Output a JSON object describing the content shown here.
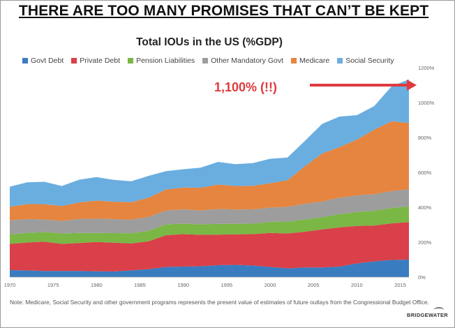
{
  "headline": "THERE ARE TOO MANY PROMISES THAT CAN’T BE KEPT",
  "note": "Note: Medicare, Social Security and other government programs represents the present value of estimates of future outlays from the Congressional Budget Office.",
  "brand": "BRIDGEWATER",
  "callout": {
    "text": "1,100%  (!!)",
    "color": "#e03a3e",
    "points_to_value": 1100
  },
  "chart_data": {
    "type": "area",
    "stacked": true,
    "title": "Total IOUs in the US (%GDP)",
    "xlabel": "",
    "ylabel": "",
    "xlim": [
      1970,
      2016
    ],
    "ylim": [
      0,
      1200
    ],
    "x_ticks": [
      "1970",
      "1975",
      "1980",
      "1985",
      "1990",
      "1995",
      "2000",
      "2005",
      "2010",
      "2015"
    ],
    "y_ticks": [
      "0%",
      "200%",
      "400%",
      "600%",
      "800%",
      "1000%",
      "1200%"
    ],
    "y_axis_position": "right",
    "legend_position": "top",
    "x": [
      1970,
      1972,
      1974,
      1976,
      1978,
      1980,
      1982,
      1984,
      1986,
      1988,
      1990,
      1992,
      1994,
      1996,
      1998,
      2000,
      2002,
      2004,
      2006,
      2008,
      2010,
      2012,
      2014,
      2016
    ],
    "series": [
      {
        "name": "Govt Debt",
        "color": "#3a7cc0",
        "values": [
          40,
          38,
          35,
          35,
          35,
          33,
          32,
          38,
          45,
          58,
          60,
          62,
          68,
          70,
          66,
          58,
          50,
          55,
          55,
          60,
          78,
          90,
          98,
          100
        ]
      },
      {
        "name": "Private Debt",
        "color": "#d94049",
        "values": [
          150,
          160,
          168,
          155,
          160,
          168,
          165,
          155,
          160,
          182,
          186,
          180,
          175,
          175,
          180,
          195,
          200,
          205,
          218,
          225,
          215,
          205,
          210,
          215
        ]
      },
      {
        "name": "Pension Liabilities",
        "color": "#7ab745",
        "values": [
          55,
          55,
          55,
          60,
          58,
          52,
          55,
          58,
          60,
          62,
          60,
          60,
          62,
          60,
          60,
          63,
          68,
          70,
          70,
          75,
          80,
          85,
          88,
          90
        ]
      },
      {
        "name": "Other Mandatory Govt",
        "color": "#9d9d9d",
        "values": [
          80,
          80,
          72,
          72,
          80,
          82,
          80,
          78,
          80,
          80,
          82,
          80,
          85,
          82,
          82,
          82,
          85,
          90,
          90,
          95,
          95,
          95,
          97,
          98
        ]
      },
      {
        "name": "Medicare",
        "color": "#e5853f",
        "values": [
          78,
          85,
          88,
          85,
          95,
          103,
          100,
          100,
          110,
          120,
          125,
          130,
          140,
          135,
          135,
          140,
          152,
          215,
          275,
          290,
          320,
          370,
          400,
          380
        ]
      },
      {
        "name": "Social Security",
        "color": "#6aaee0",
        "values": [
          115,
          125,
          128,
          115,
          130,
          135,
          125,
          120,
          125,
          105,
          105,
          115,
          130,
          125,
          130,
          140,
          130,
          145,
          170,
          175,
          140,
          135,
          200,
          250
        ]
      }
    ]
  }
}
